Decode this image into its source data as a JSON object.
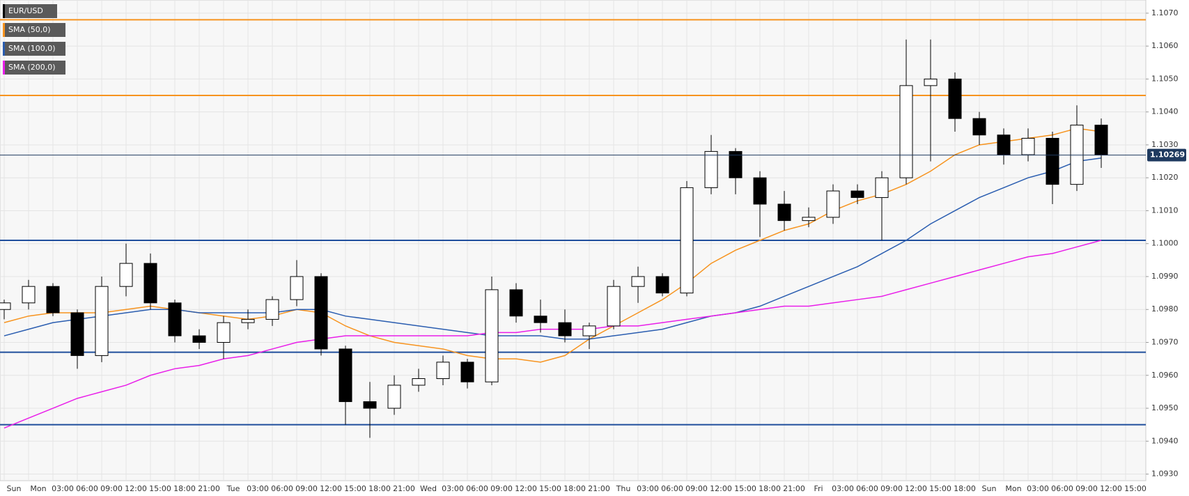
{
  "chart_data": {
    "type": "candlestick",
    "symbol": "EUR/USD",
    "categories": [
      "Sun",
      "Mon",
      "03:00",
      "06:00",
      "09:00",
      "12:00",
      "15:00",
      "18:00",
      "21:00",
      "Tue",
      "03:00",
      "06:00",
      "09:00",
      "12:00",
      "15:00",
      "18:00",
      "21:00",
      "Wed",
      "03:00",
      "06:00",
      "09:00",
      "12:00",
      "15:00",
      "18:00",
      "21:00",
      "Thu",
      "03:00",
      "06:00",
      "09:00",
      "12:00",
      "15:00",
      "18:00",
      "21:00",
      "Fri",
      "03:00",
      "06:00",
      "09:00",
      "12:00",
      "15:00",
      "18:00",
      "Sun",
      "Mon",
      "03:00",
      "06:00",
      "09:00",
      "12:00",
      "15:00"
    ],
    "open": [
      1.098,
      1.0982,
      1.0987,
      1.0979,
      1.0966,
      1.0987,
      1.0994,
      1.0982,
      1.0972,
      1.097,
      1.0976,
      1.0977,
      1.0983,
      1.099,
      1.0968,
      1.0952,
      1.095,
      1.0957,
      1.0959,
      1.0964,
      1.0958,
      1.0986,
      1.0978,
      1.0976,
      1.0972,
      1.0975,
      1.0987,
      1.099,
      1.0985,
      1.1017,
      1.1028,
      1.102,
      1.1012,
      1.1007,
      1.1008,
      1.1016,
      1.1014,
      1.102,
      1.1048,
      1.105,
      1.1038,
      1.1033,
      1.1027,
      1.1032,
      1.1018,
      1.1036,
      null
    ],
    "high": [
      1.0983,
      1.0989,
      1.0988,
      1.098,
      1.099,
      1.1,
      1.0997,
      1.0983,
      1.0974,
      1.0978,
      1.098,
      1.0984,
      1.0995,
      1.0991,
      1.0969,
      1.0958,
      1.096,
      1.0962,
      1.0966,
      1.0965,
      1.099,
      1.0988,
      1.0983,
      1.098,
      1.0976,
      1.0989,
      1.0993,
      1.0991,
      1.1019,
      1.1033,
      1.1029,
      1.1022,
      1.1016,
      1.1011,
      1.1018,
      1.1018,
      1.1022,
      1.1062,
      1.1062,
      1.1052,
      1.104,
      1.1035,
      1.1035,
      1.1034,
      1.1042,
      1.1038,
      null
    ],
    "low": [
      1.0977,
      1.098,
      1.0978,
      1.0962,
      1.0964,
      1.0984,
      1.098,
      1.097,
      1.0968,
      1.0965,
      1.0974,
      1.0975,
      1.0981,
      1.0966,
      1.0945,
      1.0941,
      1.0948,
      1.0955,
      1.0957,
      1.0956,
      1.0957,
      1.0976,
      1.0973,
      1.097,
      1.0968,
      1.0974,
      1.0982,
      1.0984,
      1.0984,
      1.1015,
      1.1015,
      1.1002,
      1.1004,
      1.1005,
      1.1006,
      1.1012,
      1.1001,
      1.1018,
      1.1025,
      1.1034,
      1.103,
      1.1024,
      1.1025,
      1.1012,
      1.1016,
      1.1023,
      null
    ],
    "close": [
      1.0982,
      1.0987,
      1.0979,
      1.0966,
      1.0987,
      1.0994,
      1.0982,
      1.0972,
      1.097,
      1.0976,
      1.0977,
      1.0983,
      1.099,
      1.0968,
      1.0952,
      1.095,
      1.0957,
      1.0959,
      1.0964,
      1.0958,
      1.0986,
      1.0978,
      1.0976,
      1.0972,
      1.0975,
      1.0987,
      1.099,
      1.0985,
      1.1017,
      1.1028,
      1.102,
      1.1012,
      1.1007,
      1.1008,
      1.1016,
      1.1014,
      1.102,
      1.1048,
      1.105,
      1.1038,
      1.1033,
      1.1027,
      1.1032,
      1.1018,
      1.1036,
      1.1027,
      null
    ],
    "up_color": "#ffffff",
    "down_color": "#000000",
    "series": [
      {
        "name": "SMA (50,0)",
        "color": "#f7931e",
        "values": [
          1.0976,
          1.0978,
          1.0979,
          1.0979,
          1.0979,
          1.098,
          1.0981,
          1.098,
          1.0979,
          1.0978,
          1.0977,
          1.0978,
          1.098,
          1.0979,
          1.0975,
          1.0972,
          1.097,
          1.0969,
          1.0968,
          1.0966,
          1.0965,
          1.0965,
          1.0964,
          1.0966,
          1.0971,
          1.0975,
          1.0979,
          1.0983,
          1.0988,
          1.0994,
          1.0998,
          1.1001,
          1.1004,
          1.1006,
          1.101,
          1.1013,
          1.1015,
          1.1018,
          1.1022,
          1.1027,
          1.103,
          1.1031,
          1.1032,
          1.1033,
          1.1035,
          1.1034,
          null
        ]
      },
      {
        "name": "SMA (100,0)",
        "color": "#2a5db0",
        "values": [
          1.0972,
          1.0974,
          1.0976,
          1.0977,
          1.0978,
          1.0979,
          1.098,
          1.098,
          1.0979,
          1.0979,
          1.0979,
          1.0979,
          1.098,
          1.098,
          1.0978,
          1.0977,
          1.0976,
          1.0975,
          1.0974,
          1.0973,
          1.0972,
          1.0972,
          1.0972,
          1.0971,
          1.0971,
          1.0972,
          1.0973,
          1.0974,
          1.0976,
          1.0978,
          1.0979,
          1.0981,
          1.0984,
          1.0987,
          1.099,
          1.0993,
          1.0997,
          1.1001,
          1.1006,
          1.101,
          1.1014,
          1.1017,
          1.102,
          1.1022,
          1.1025,
          1.1026,
          null
        ]
      },
      {
        "name": "SMA (200,0)",
        "color": "#e91ee9",
        "values": [
          1.0944,
          1.0947,
          1.095,
          1.0953,
          1.0955,
          1.0957,
          1.096,
          1.0962,
          1.0963,
          1.0965,
          1.0966,
          1.0968,
          1.097,
          1.0971,
          1.0972,
          1.0972,
          1.0972,
          1.0972,
          1.0972,
          1.0972,
          1.0973,
          1.0973,
          1.0974,
          1.0974,
          1.0974,
          1.0975,
          1.0975,
          1.0976,
          1.0977,
          1.0978,
          1.0979,
          1.098,
          1.0981,
          1.0981,
          1.0982,
          1.0983,
          1.0984,
          1.0986,
          1.0988,
          1.099,
          1.0992,
          1.0994,
          1.0996,
          1.0997,
          1.0999,
          1.1001,
          null
        ]
      }
    ],
    "hlines": [
      {
        "value": 1.1068,
        "color": "#f7931e"
      },
      {
        "value": 1.1045,
        "color": "#f7931e"
      },
      {
        "value": 1.1001,
        "color": "#1f4e9c"
      },
      {
        "value": 1.0967,
        "color": "#1f4e9c"
      },
      {
        "value": 1.0945,
        "color": "#1f4e9c"
      }
    ],
    "last_price": 1.10269,
    "ylim": [
      1.0928,
      1.1074
    ],
    "yticks": [
      {
        "value": 1.093,
        "label": "1.0930"
      },
      {
        "value": 1.094,
        "label": "1.0940"
      },
      {
        "value": 1.095,
        "label": "1.0950"
      },
      {
        "value": 1.096,
        "label": "1.0960"
      },
      {
        "value": 1.097,
        "label": "1.0970"
      },
      {
        "value": 1.098,
        "label": "1.0980"
      },
      {
        "value": 1.099,
        "label": "1.0990"
      },
      {
        "value": 1.1,
        "label": "1.1000"
      },
      {
        "value": 1.101,
        "label": "1.1010"
      },
      {
        "value": 1.102,
        "label": "1.1020"
      },
      {
        "value": 1.103,
        "label": "1.1030"
      },
      {
        "value": 1.104,
        "label": "1.1040"
      },
      {
        "value": 1.105,
        "label": "1.1050"
      },
      {
        "value": 1.106,
        "label": "1.1060"
      },
      {
        "value": 1.107,
        "label": "1.1070"
      }
    ],
    "grid": true
  }
}
